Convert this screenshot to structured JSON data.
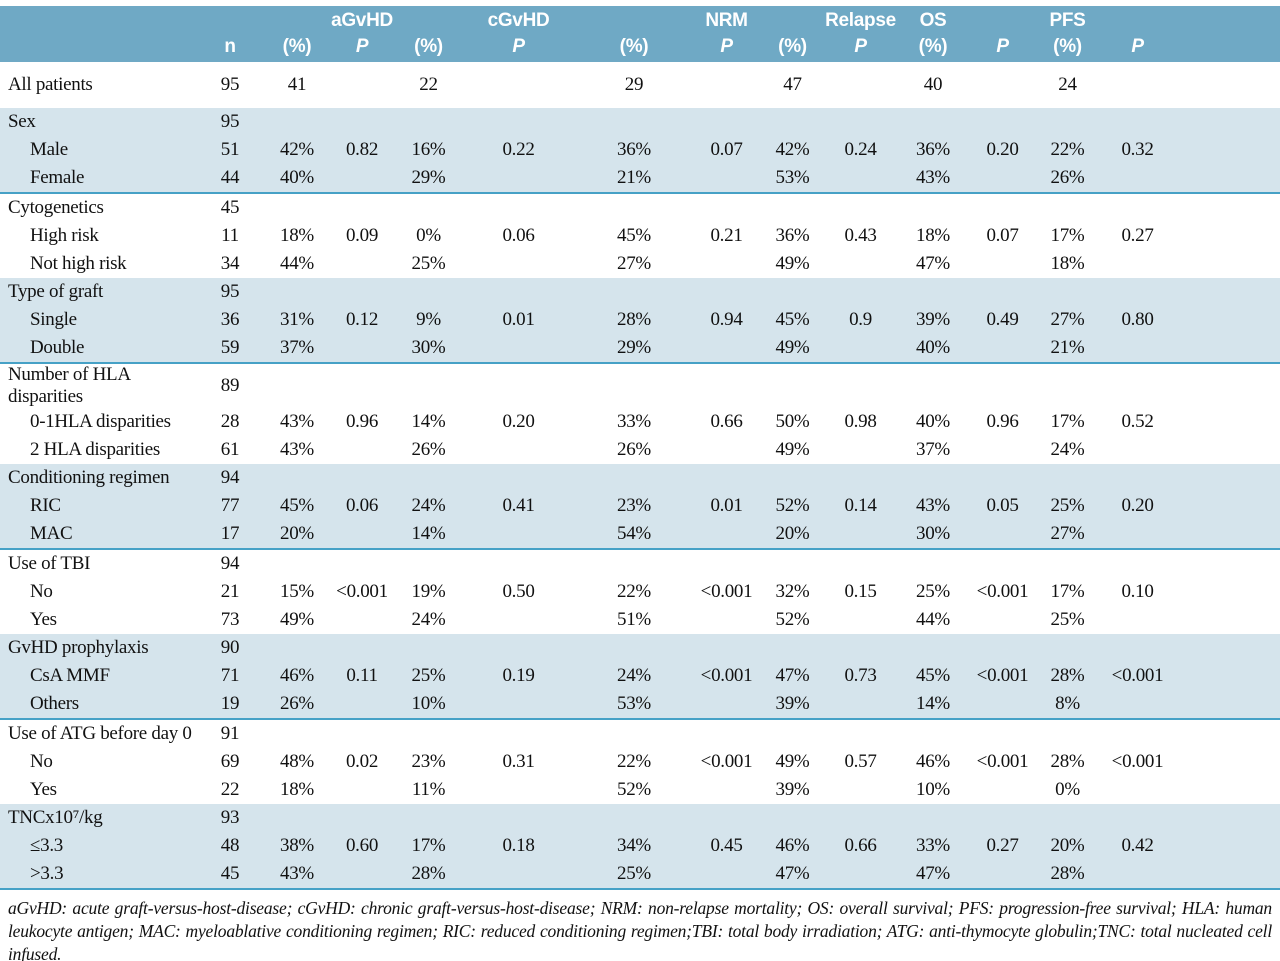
{
  "table": {
    "header": {
      "n_label": "n",
      "pct_label": "(%)",
      "p_label": "P",
      "groups": [
        "aGvHD",
        "cGvHD",
        "NRM",
        "Relapse",
        "OS",
        "PFS"
      ]
    },
    "rows": [
      {
        "band": "white",
        "indent": 0,
        "label": "All patients",
        "cells": [
          "95",
          "41",
          "",
          "22",
          "",
          "29",
          "",
          "47",
          "",
          "40",
          "",
          "24",
          ""
        ]
      },
      {
        "band": "blue",
        "indent": 0,
        "label": "Sex",
        "cells": [
          "95",
          "",
          "",
          "",
          "",
          "",
          "",
          "",
          "",
          "",
          "",
          "",
          ""
        ]
      },
      {
        "band": "blue",
        "indent": 1,
        "label": "Male",
        "cells": [
          "51",
          "42%",
          "0.82",
          "16%",
          "0.22",
          "36%",
          "0.07",
          "42%",
          "0.24",
          "36%",
          "0.20",
          "22%",
          "0.32"
        ]
      },
      {
        "band": "blue",
        "indent": 1,
        "sep": true,
        "label": "Female",
        "cells": [
          "44",
          "40%",
          "",
          "29%",
          "",
          "21%",
          "",
          "53%",
          "",
          "43%",
          "",
          "26%",
          ""
        ]
      },
      {
        "band": "white",
        "indent": 0,
        "label": "Cytogenetics",
        "cells": [
          "45",
          "",
          "",
          "",
          "",
          "",
          "",
          "",
          "",
          "",
          "",
          "",
          ""
        ]
      },
      {
        "band": "white",
        "indent": 1,
        "label": "High risk",
        "cells": [
          "11",
          "18%",
          "0.09",
          "0%",
          "0.06",
          "45%",
          "0.21",
          "36%",
          "0.43",
          "18%",
          "0.07",
          "17%",
          "0.27"
        ]
      },
      {
        "band": "white",
        "indent": 1,
        "label": "Not high risk",
        "cells": [
          "34",
          "44%",
          "",
          "25%",
          "",
          "27%",
          "",
          "49%",
          "",
          "47%",
          "",
          "18%",
          ""
        ]
      },
      {
        "band": "blue",
        "indent": 0,
        "label": "Type of graft",
        "cells": [
          "95",
          "",
          "",
          "",
          "",
          "",
          "",
          "",
          "",
          "",
          "",
          "",
          ""
        ]
      },
      {
        "band": "blue",
        "indent": 1,
        "label": "Single",
        "cells": [
          "36",
          "31%",
          "0.12",
          "9%",
          "0.01",
          "28%",
          "0.94",
          "45%",
          "0.9",
          "39%",
          "0.49",
          "27%",
          "0.80"
        ]
      },
      {
        "band": "blue",
        "indent": 1,
        "sep": true,
        "label": "Double",
        "cells": [
          "59",
          "37%",
          "",
          "30%",
          "",
          "29%",
          "",
          "49%",
          "",
          "40%",
          "",
          "21%",
          ""
        ]
      },
      {
        "band": "white",
        "indent": 0,
        "label": "Number of HLA disparities",
        "cells": [
          "89",
          "",
          "",
          "",
          "",
          "",
          "",
          "",
          "",
          "",
          "",
          "",
          ""
        ]
      },
      {
        "band": "white",
        "indent": 1,
        "label": "0-1HLA disparities",
        "cells": [
          "28",
          "43%",
          "0.96",
          "14%",
          "0.20",
          "33%",
          "0.66",
          "50%",
          "0.98",
          "40%",
          "0.96",
          "17%",
          "0.52"
        ]
      },
      {
        "band": "white",
        "indent": 1,
        "label": "2 HLA disparities",
        "cells": [
          "61",
          "43%",
          "",
          "26%",
          "",
          "26%",
          "",
          "49%",
          "",
          "37%",
          "",
          "24%",
          ""
        ]
      },
      {
        "band": "blue",
        "indent": 0,
        "label": "Conditioning regimen",
        "cells": [
          "94",
          "",
          "",
          "",
          "",
          "",
          "",
          "",
          "",
          "",
          "",
          "",
          ""
        ]
      },
      {
        "band": "blue",
        "indent": 1,
        "label": "RIC",
        "cells": [
          "77",
          "45%",
          "0.06",
          "24%",
          "0.41",
          "23%",
          "0.01",
          "52%",
          "0.14",
          "43%",
          "0.05",
          "25%",
          "0.20"
        ]
      },
      {
        "band": "blue",
        "indent": 1,
        "sep": true,
        "label": "MAC",
        "cells": [
          "17",
          "20%",
          "",
          "14%",
          "",
          "54%",
          "",
          "20%",
          "",
          "30%",
          "",
          "27%",
          ""
        ]
      },
      {
        "band": "white",
        "indent": 0,
        "label": "Use of TBI",
        "cells": [
          "94",
          "",
          "",
          "",
          "",
          "",
          "",
          "",
          "",
          "",
          "",
          "",
          ""
        ]
      },
      {
        "band": "white",
        "indent": 1,
        "label": "No",
        "cells": [
          "21",
          "15%",
          "<0.001",
          "19%",
          "0.50",
          "22%",
          "<0.001",
          "32%",
          "0.15",
          "25%",
          "<0.001",
          "17%",
          "0.10"
        ]
      },
      {
        "band": "white",
        "indent": 1,
        "label": "Yes",
        "cells": [
          "73",
          "49%",
          "",
          "24%",
          "",
          "51%",
          "",
          "52%",
          "",
          "44%",
          "",
          "25%",
          ""
        ]
      },
      {
        "band": "blue",
        "indent": 0,
        "label": "GvHD prophylaxis",
        "cells": [
          "90",
          "",
          "",
          "",
          "",
          "",
          "",
          "",
          "",
          "",
          "",
          "",
          ""
        ]
      },
      {
        "band": "blue",
        "indent": 1,
        "label": "CsA MMF",
        "cells": [
          "71",
          "46%",
          "0.11",
          "25%",
          "0.19",
          "24%",
          "<0.001",
          "47%",
          "0.73",
          "45%",
          "<0.001",
          "28%",
          "<0.001"
        ]
      },
      {
        "band": "blue",
        "indent": 1,
        "sep": true,
        "label": "Others",
        "cells": [
          "19",
          "26%",
          "",
          "10%",
          "",
          "53%",
          "",
          "39%",
          "",
          "14%",
          "",
          "8%",
          ""
        ]
      },
      {
        "band": "white",
        "indent": 0,
        "label": "Use of ATG before day 0",
        "cells": [
          "91",
          "",
          "",
          "",
          "",
          "",
          "",
          "",
          "",
          "",
          "",
          "",
          ""
        ]
      },
      {
        "band": "white",
        "indent": 1,
        "label": "No",
        "cells": [
          "69",
          "48%",
          "0.02",
          "23%",
          "0.31",
          "22%",
          "<0.001",
          "49%",
          "0.57",
          "46%",
          "<0.001",
          "28%",
          "<0.001"
        ]
      },
      {
        "band": "white",
        "indent": 1,
        "label": "Yes",
        "cells": [
          "22",
          "18%",
          "",
          "11%",
          "",
          "52%",
          "",
          "39%",
          "",
          "10%",
          "",
          "0%",
          ""
        ]
      },
      {
        "band": "blue",
        "indent": 0,
        "label": "TNCx10⁷/kg",
        "cells": [
          "93",
          "",
          "",
          "",
          "",
          "",
          "",
          "",
          "",
          "",
          "",
          "",
          ""
        ]
      },
      {
        "band": "blue",
        "indent": 1,
        "label": "≤3.3",
        "cells": [
          "48",
          "38%",
          "0.60",
          "17%",
          "0.18",
          "34%",
          "0.45",
          "46%",
          "0.66",
          "33%",
          "0.27",
          "20%",
          "0.42"
        ]
      },
      {
        "band": "blue",
        "indent": 1,
        "sep": true,
        "label": ">3.3",
        "cells": [
          "45",
          "43%",
          "",
          "28%",
          "",
          "25%",
          "",
          "47%",
          "",
          "47%",
          "",
          "28%",
          ""
        ]
      }
    ]
  },
  "footnote": "aGvHD: acute graft-versus-host-disease; cGvHD: chronic graft-versus-host-disease; NRM: non-relapse mortality; OS: overall survival; PFS: progression-free survival; HLA: human leukocyte antigen; MAC: myeloablative conditioning regimen; RIC: reduced conditioning regimen;TBI: total body irradiation; ATG: anti-thymocyte globulin;TNC: total nucleated cell infused."
}
